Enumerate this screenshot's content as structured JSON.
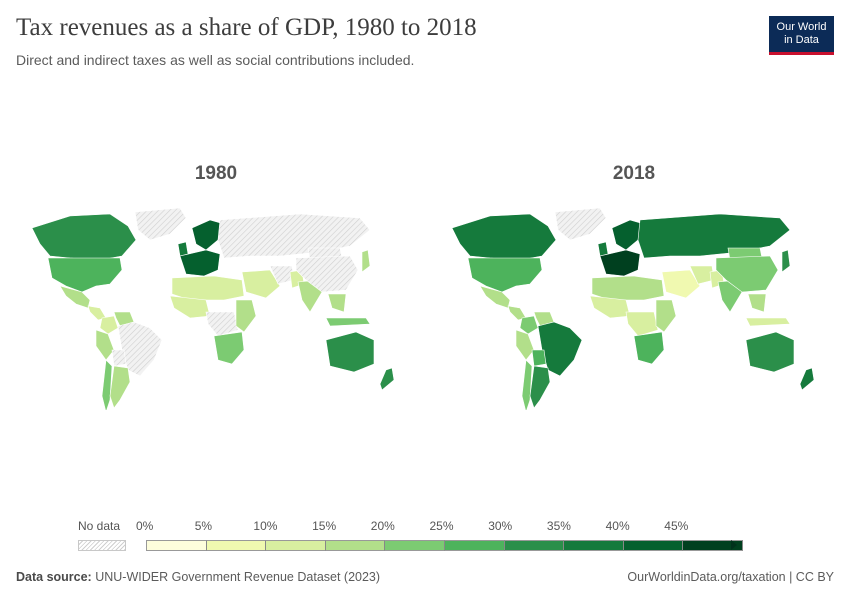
{
  "title": "Tax revenues as a share of GDP, 1980 to 2018",
  "subtitle": "Direct and indirect taxes as well as social contributions included.",
  "logo": {
    "line1": "Our World",
    "line2": "in Data"
  },
  "maps": [
    {
      "year": "1980",
      "regions": {
        "canada": 30,
        "usa": 25,
        "mexico": 15,
        "greenland": null,
        "central_america": 12,
        "colombia": 12,
        "venezuela": 15,
        "brazil": null,
        "peru": 15,
        "bolivia": null,
        "chile": 20,
        "argentina": 15,
        "scandinavia": 40,
        "uk": 35,
        "w_europe": 40,
        "ussr": null,
        "n_africa": 10,
        "w_africa": 10,
        "e_africa": 15,
        "central_africa": null,
        "southern_africa": 20,
        "middle_east": 10,
        "india": 15,
        "china": null,
        "se_asia": 15,
        "japan": 15,
        "indonesia": 20,
        "australia": 30,
        "new_zealand": 30,
        "pakistan": 10,
        "iran": null,
        "mongolia": null
      }
    },
    {
      "year": "2018",
      "regions": {
        "canada": 35,
        "usa": 25,
        "mexico": 15,
        "greenland": null,
        "central_america": 15,
        "colombia": 20,
        "venezuela": 15,
        "brazil": 35,
        "peru": 15,
        "bolivia": 25,
        "chile": 20,
        "argentina": 30,
        "scandinavia": 40,
        "uk": 35,
        "w_europe": 45,
        "ussr": 35,
        "n_africa": 15,
        "w_africa": 10,
        "e_africa": 15,
        "central_africa": 10,
        "southern_africa": 25,
        "middle_east": 5,
        "india": 20,
        "china": 20,
        "se_asia": 15,
        "japan": 30,
        "indonesia": 10,
        "australia": 30,
        "new_zealand": 35,
        "pakistan": 10,
        "iran": 10,
        "mongolia": 20
      }
    }
  ],
  "legend": {
    "no_data_label": "No data",
    "ticks": [
      "0%",
      "5%",
      "10%",
      "15%",
      "20%",
      "25%",
      "30%",
      "35%",
      "40%",
      "45%"
    ],
    "colors": [
      "#fdfddc",
      "#f0f9b0",
      "#d8efa0",
      "#b2df8a",
      "#7ccb72",
      "#4db35c",
      "#2b8f4a",
      "#157a3c",
      "#05602e",
      "#00401f"
    ],
    "no_data_color": "#e5e5e5"
  },
  "footer": {
    "source_label": "Data source:",
    "source_text": "UNU-WIDER Government Revenue Dataset (2023)",
    "right_text": "OurWorldinData.org/taxation | CC BY"
  }
}
